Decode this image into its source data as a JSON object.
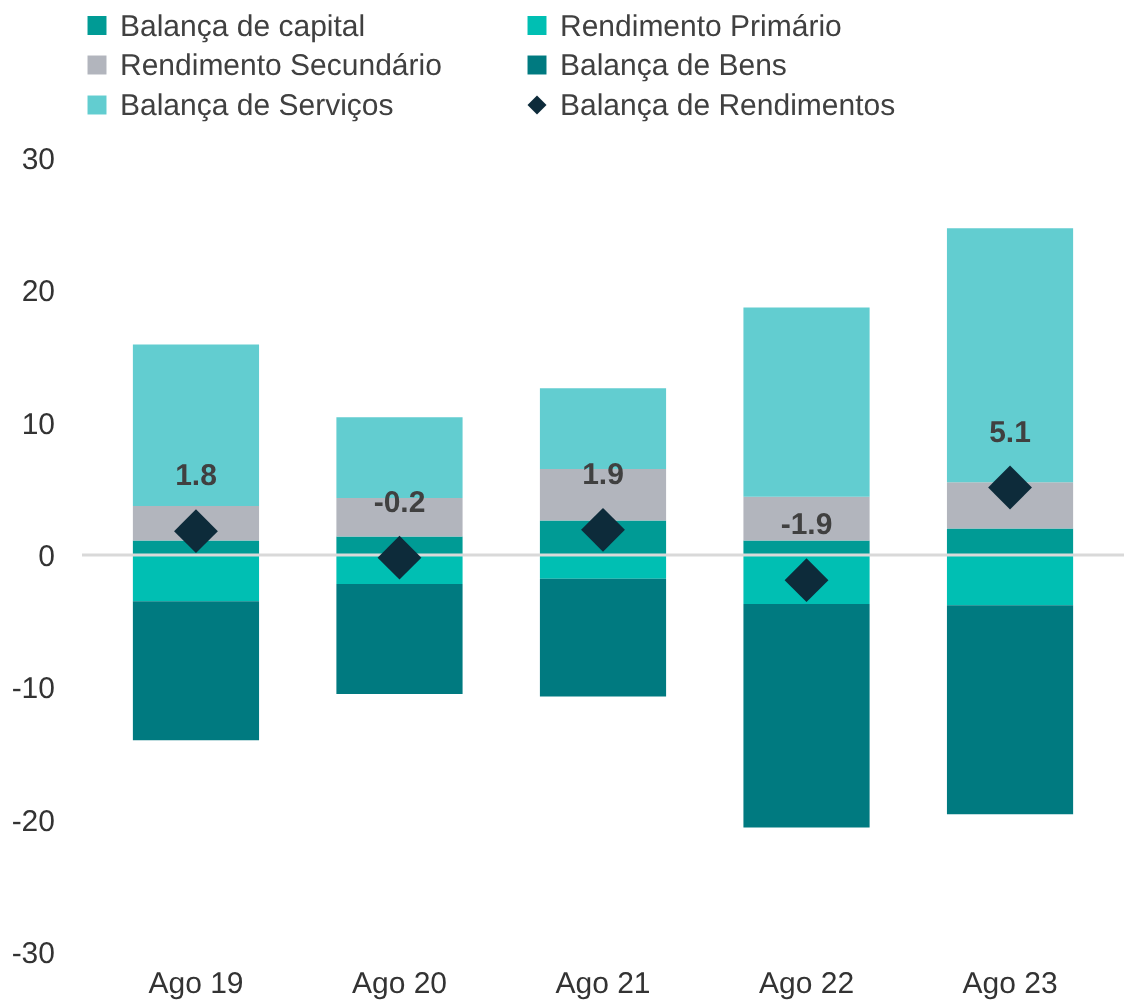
{
  "chart_data": {
    "type": "bar",
    "stacked": true,
    "categories": [
      "Ago 19",
      "Ago 20",
      "Ago 21",
      "Ago 22",
      "Ago 23"
    ],
    "ylim": [
      -30,
      30
    ],
    "yticks": [
      -30,
      -20,
      -10,
      0,
      10,
      20,
      30
    ],
    "grid": false,
    "legend": "top",
    "ref_lines": [
      {
        "axis": "y",
        "value": 0,
        "color": "#d9d9d9"
      }
    ],
    "series": [
      {
        "name": "Balança de capital",
        "color": "#009b95",
        "values": [
          1.1,
          1.4,
          2.6,
          1.1,
          2.0
        ]
      },
      {
        "name": "Rendimento Primário",
        "color": "#00bfb3",
        "values": [
          -3.5,
          -2.2,
          -1.8,
          -3.7,
          -3.8
        ]
      },
      {
        "name": "Rendimento Secundário",
        "color": "#b2b5bd",
        "values": [
          2.6,
          2.9,
          3.9,
          3.3,
          3.5
        ]
      },
      {
        "name": "Balança de Bens",
        "color": "#007a80",
        "values": [
          -10.5,
          -8.3,
          -8.9,
          -16.9,
          -15.8
        ]
      },
      {
        "name": "Balança de Serviços",
        "color": "#62cdd0",
        "values": [
          12.2,
          6.1,
          6.1,
          14.3,
          19.2
        ]
      },
      {
        "name": "Balança de Rendimentos",
        "type": "scatter",
        "marker": "diamond",
        "color": "#0d2b3a",
        "values": [
          1.8,
          -0.2,
          1.9,
          -1.9,
          5.1
        ],
        "value_labels": [
          "1.8",
          "-0.2",
          "1.9",
          "-1.9",
          "5.1"
        ]
      }
    ]
  }
}
